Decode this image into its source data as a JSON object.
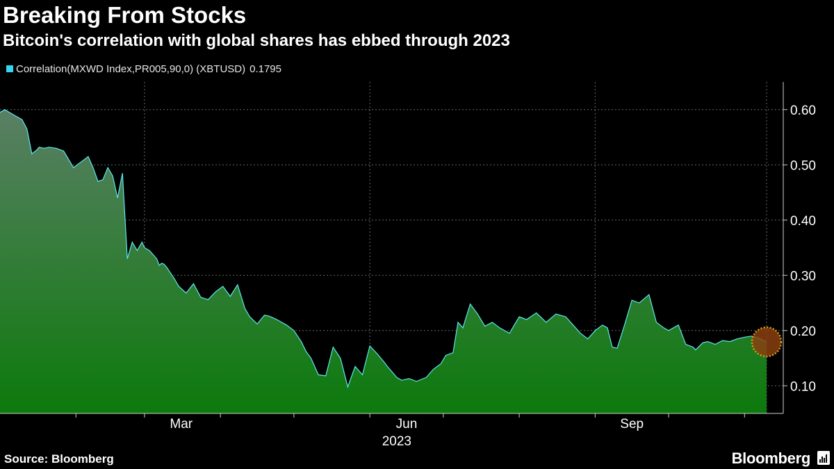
{
  "header": {
    "title": "Breaking From Stocks",
    "subtitle": "Bitcoin's correlation with global shares has ebbed through 2023"
  },
  "legend": {
    "label": "Correlation(MXWD Index,PR005,90,0) (XBTUSD)",
    "last_value": "0.1795",
    "swatch_color": "#33d6ec"
  },
  "footer": {
    "source": "Source: Bloomberg",
    "brand": "Bloomberg",
    "brand_icon": "bloomberg-terminal-icon"
  },
  "colors": {
    "line": "#5ee8f0",
    "fill_top": "#5a7f64",
    "fill_bottom": "#0c7a0c",
    "marker": "#8a3f10",
    "marker_ring": "#d4a017"
  },
  "chart_data": {
    "type": "area",
    "title": "Breaking From Stocks",
    "subtitle": "Bitcoin's correlation with global shares has ebbed through 2023",
    "xlabel": "2023",
    "ylabel": "",
    "ylim": [
      0.05,
      0.65
    ],
    "xlim": [
      "2023-01-01",
      "2023-11-10"
    ],
    "y_ticks": [
      0.1,
      0.2,
      0.3,
      0.4,
      0.5,
      0.6
    ],
    "y_tick_labels": [
      "0.10",
      "0.20",
      "0.30",
      "0.40",
      "0.50",
      "0.60"
    ],
    "x_tick_labels": [
      {
        "date": "2023-03-01",
        "label": "Mar"
      },
      {
        "date": "2023-06-01",
        "label": "Jun"
      },
      {
        "date": "2023-09-01",
        "label": "Sep"
      }
    ],
    "x_minor_ticks": [
      "2023-02-01",
      "2023-03-01",
      "2023-04-01",
      "2023-05-01",
      "2023-06-01",
      "2023-07-01",
      "2023-08-01",
      "2023-09-01",
      "2023-10-01",
      "2023-11-01"
    ],
    "x_gridlines": [
      "2023-03-01",
      "2023-06-01",
      "2023-09-01",
      "2023-11-10"
    ],
    "year_label": "2023",
    "grid": true,
    "legend_position": "top-left",
    "series": [
      {
        "name": "Correlation(MXWD Index,PR005,90,0) (XBTUSD)",
        "last_value": 0.1795,
        "x": [
          "2023-01-01",
          "2023-01-03",
          "2023-01-06",
          "2023-01-10",
          "2023-01-12",
          "2023-01-14",
          "2023-01-16",
          "2023-01-17",
          "2023-01-19",
          "2023-01-21",
          "2023-01-24",
          "2023-01-27",
          "2023-01-31",
          "2023-02-03",
          "2023-02-06",
          "2023-02-08",
          "2023-02-10",
          "2023-02-12",
          "2023-02-14",
          "2023-02-16",
          "2023-02-18",
          "2023-02-20",
          "2023-02-22",
          "2023-02-24",
          "2023-02-26",
          "2023-02-28",
          "2023-03-01",
          "2023-03-03",
          "2023-03-06",
          "2023-03-07",
          "2023-03-08",
          "2023-03-09",
          "2023-03-10",
          "2023-03-13",
          "2023-03-15",
          "2023-03-18",
          "2023-03-21",
          "2023-03-24",
          "2023-03-27",
          "2023-03-30",
          "2023-04-02",
          "2023-04-05",
          "2023-04-08",
          "2023-04-11",
          "2023-04-13",
          "2023-04-16",
          "2023-04-19",
          "2023-04-21",
          "2023-04-24",
          "2023-04-28",
          "2023-05-01",
          "2023-05-04",
          "2023-05-06",
          "2023-05-08",
          "2023-05-11",
          "2023-05-14",
          "2023-05-17",
          "2023-05-20",
          "2023-05-23",
          "2023-05-26",
          "2023-05-29",
          "2023-06-01",
          "2023-06-04",
          "2023-06-07",
          "2023-06-08",
          "2023-06-12",
          "2023-06-14",
          "2023-06-17",
          "2023-06-20",
          "2023-06-24",
          "2023-06-27",
          "2023-06-30",
          "2023-07-02",
          "2023-07-05",
          "2023-07-07",
          "2023-07-09",
          "2023-07-12",
          "2023-07-15",
          "2023-07-18",
          "2023-07-21",
          "2023-07-24",
          "2023-07-28",
          "2023-08-01",
          "2023-08-04",
          "2023-08-08",
          "2023-08-12",
          "2023-08-16",
          "2023-08-20",
          "2023-08-23",
          "2023-08-26",
          "2023-08-29",
          "2023-09-01",
          "2023-09-04",
          "2023-09-06",
          "2023-09-08",
          "2023-09-10",
          "2023-09-13",
          "2023-09-16",
          "2023-09-19",
          "2023-09-23",
          "2023-09-26",
          "2023-09-29",
          "2023-10-01",
          "2023-10-05",
          "2023-10-08",
          "2023-10-11",
          "2023-10-12",
          "2023-10-15",
          "2023-10-17",
          "2023-10-20",
          "2023-10-23",
          "2023-10-26",
          "2023-10-29",
          "2023-11-01",
          "2023-11-04",
          "2023-11-07",
          "2023-11-10"
        ],
        "y": [
          0.595,
          0.6,
          0.592,
          0.582,
          0.565,
          0.52,
          0.527,
          0.532,
          0.53,
          0.532,
          0.53,
          0.525,
          0.495,
          0.505,
          0.515,
          0.495,
          0.47,
          0.473,
          0.495,
          0.48,
          0.44,
          0.485,
          0.33,
          0.36,
          0.345,
          0.36,
          0.35,
          0.345,
          0.33,
          0.318,
          0.322,
          0.32,
          0.315,
          0.295,
          0.28,
          0.268,
          0.285,
          0.26,
          0.256,
          0.27,
          0.28,
          0.262,
          0.283,
          0.24,
          0.225,
          0.212,
          0.228,
          0.226,
          0.22,
          0.21,
          0.2,
          0.18,
          0.162,
          0.15,
          0.12,
          0.118,
          0.17,
          0.15,
          0.098,
          0.135,
          0.12,
          0.172,
          0.158,
          0.142,
          0.136,
          0.115,
          0.11,
          0.113,
          0.108,
          0.115,
          0.13,
          0.14,
          0.155,
          0.16,
          0.215,
          0.205,
          0.248,
          0.23,
          0.208,
          0.215,
          0.205,
          0.195,
          0.225,
          0.22,
          0.232,
          0.215,
          0.23,
          0.225,
          0.21,
          0.195,
          0.185,
          0.2,
          0.21,
          0.205,
          0.17,
          0.168,
          0.21,
          0.255,
          0.25,
          0.265,
          0.215,
          0.205,
          0.2,
          0.21,
          0.175,
          0.17,
          0.165,
          0.178,
          0.18,
          0.175,
          0.182,
          0.18,
          0.185,
          0.188,
          0.19,
          0.186,
          0.1795
        ]
      }
    ]
  }
}
